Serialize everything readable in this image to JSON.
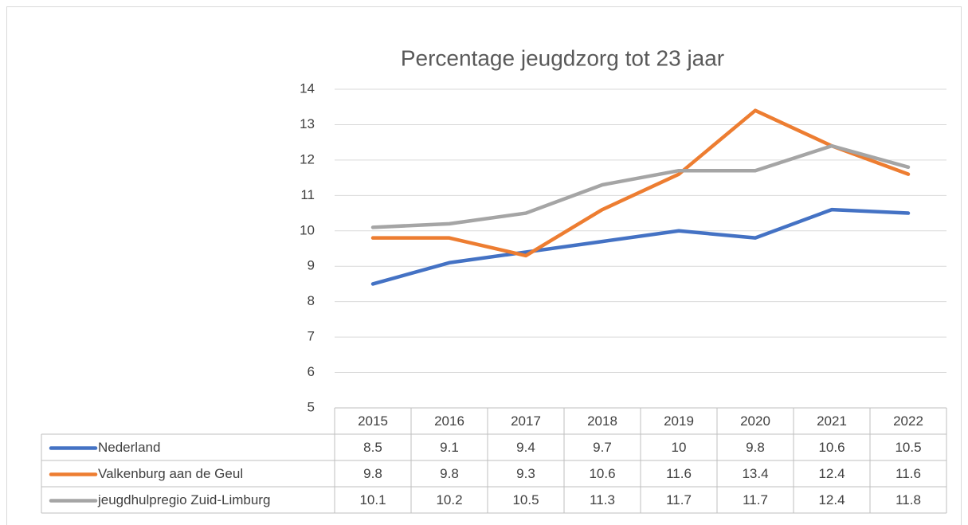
{
  "chart_data": {
    "type": "line",
    "title": "Percentage jeugdzorg tot 23 jaar",
    "categories": [
      "2015",
      "2016",
      "2017",
      "2018",
      "2019",
      "2020",
      "2021",
      "2022"
    ],
    "series": [
      {
        "name": "Nederland",
        "color": "#4472c4",
        "values": [
          8.5,
          9.1,
          9.4,
          9.7,
          10,
          9.8,
          10.6,
          10.5
        ]
      },
      {
        "name": "Valkenburg aan de Geul",
        "color": "#ed7d31",
        "values": [
          9.8,
          9.8,
          9.3,
          10.6,
          11.6,
          13.4,
          12.4,
          11.6
        ]
      },
      {
        "name": "jeugdhulpregio Zuid-Limburg",
        "color": "#a5a5a5",
        "values": [
          10.1,
          10.2,
          10.5,
          11.3,
          11.7,
          11.7,
          12.4,
          11.8
        ]
      }
    ],
    "ylim": [
      5,
      14
    ],
    "yticks": [
      5,
      6,
      7,
      8,
      9,
      10,
      11,
      12,
      13,
      14
    ],
    "grid": true,
    "data_table": true
  }
}
